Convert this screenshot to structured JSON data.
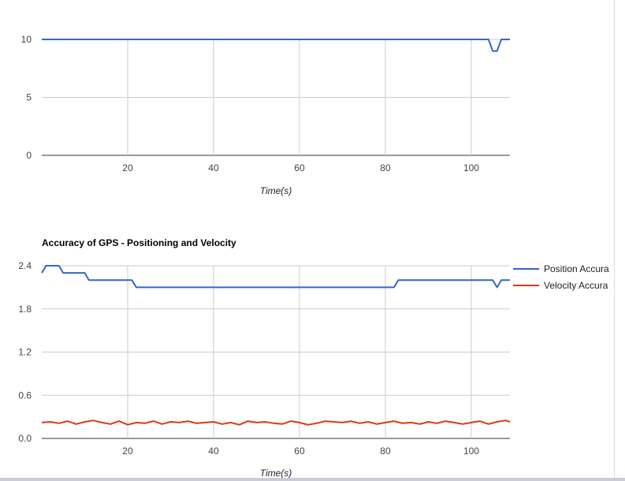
{
  "colors": {
    "series_blue": "#3366cc",
    "series_red": "#dc3912",
    "grid": "#cccccc",
    "axis": "#333333"
  },
  "chart_data": [
    {
      "type": "line",
      "title": "",
      "xlabel": "Time(s)",
      "ylabel": "",
      "xlim": [
        0,
        109
      ],
      "ylim": [
        0,
        10
      ],
      "x_ticks": [
        "20",
        "40",
        "60",
        "80",
        "100"
      ],
      "y_ticks": [
        "0",
        "5",
        "10"
      ],
      "grid": true,
      "legend": "none",
      "series": [
        {
          "name": "",
          "color": "#3366cc",
          "x": [
            0,
            104,
            105,
            106,
            107,
            109
          ],
          "y": [
            10,
            10,
            9,
            9,
            10,
            10
          ]
        }
      ]
    },
    {
      "type": "line",
      "title": "Accuracy of GPS - Positioning and Velocity",
      "xlabel": "Time(s)",
      "ylabel": "",
      "xlim": [
        0,
        109
      ],
      "ylim": [
        0,
        2.4
      ],
      "x_ticks": [
        "20",
        "40",
        "60",
        "80",
        "100"
      ],
      "y_ticks": [
        "0.0",
        "0.6",
        "1.2",
        "1.8",
        "2.4"
      ],
      "grid": true,
      "legend": "right",
      "series": [
        {
          "name": "Position Accura",
          "color": "#3366cc",
          "x": [
            0,
            1,
            4,
            5,
            10,
            11,
            21,
            22,
            82,
            83,
            105,
            106,
            107,
            109
          ],
          "y": [
            2.3,
            2.4,
            2.4,
            2.3,
            2.3,
            2.2,
            2.2,
            2.1,
            2.1,
            2.2,
            2.2,
            2.1,
            2.2,
            2.2
          ]
        },
        {
          "name": "Velocity Accura",
          "color": "#dc3912",
          "x": [
            0,
            2,
            4,
            6,
            8,
            10,
            12,
            14,
            16,
            18,
            20,
            22,
            24,
            26,
            28,
            30,
            32,
            34,
            36,
            38,
            40,
            42,
            44,
            46,
            48,
            50,
            52,
            54,
            56,
            58,
            60,
            62,
            64,
            66,
            68,
            70,
            72,
            74,
            76,
            78,
            80,
            82,
            84,
            86,
            88,
            90,
            92,
            94,
            96,
            98,
            100,
            102,
            104,
            106,
            108,
            109
          ],
          "y": [
            0.22,
            0.23,
            0.21,
            0.24,
            0.2,
            0.23,
            0.25,
            0.22,
            0.2,
            0.24,
            0.19,
            0.22,
            0.21,
            0.24,
            0.2,
            0.23,
            0.22,
            0.24,
            0.21,
            0.22,
            0.23,
            0.2,
            0.22,
            0.19,
            0.24,
            0.22,
            0.23,
            0.21,
            0.2,
            0.24,
            0.22,
            0.19,
            0.21,
            0.24,
            0.23,
            0.22,
            0.24,
            0.21,
            0.23,
            0.2,
            0.22,
            0.24,
            0.21,
            0.22,
            0.2,
            0.23,
            0.21,
            0.24,
            0.22,
            0.2,
            0.22,
            0.24,
            0.2,
            0.23,
            0.25,
            0.23
          ]
        }
      ]
    }
  ]
}
